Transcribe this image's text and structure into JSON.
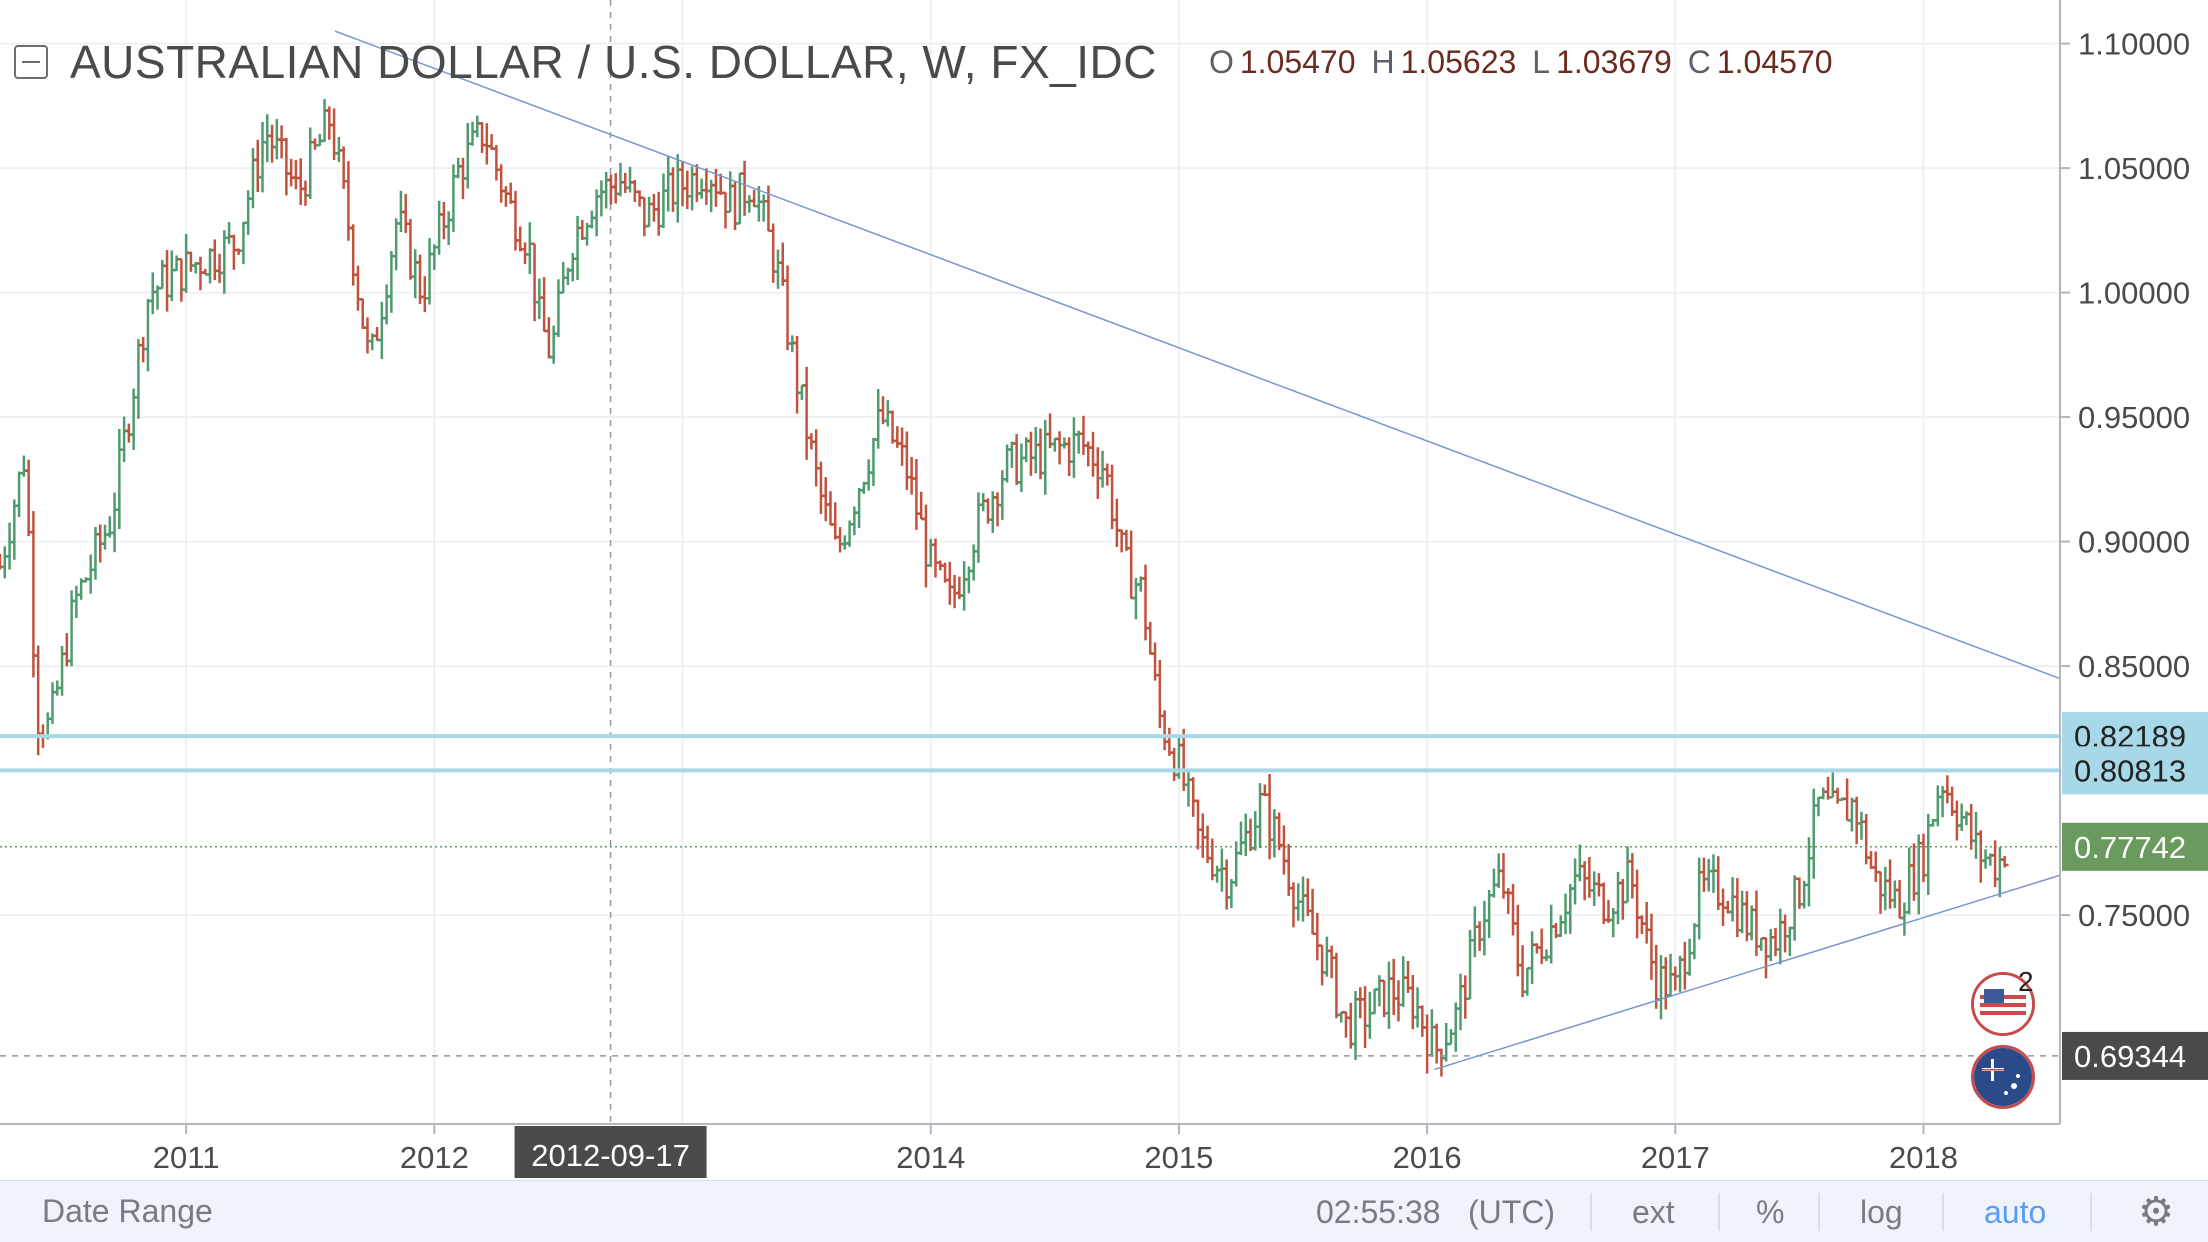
{
  "header": {
    "title": "AUSTRALIAN DOLLAR / U.S. DOLLAR, W, FX_IDC",
    "ohlc": [
      {
        "label": "O",
        "value": "1.05470"
      },
      {
        "label": "H",
        "value": "1.05623"
      },
      {
        "label": "L",
        "value": "1.03679"
      },
      {
        "label": "C",
        "value": "1.04570"
      }
    ]
  },
  "bottombar": {
    "date_range": "Date Range",
    "time": "02:55:38",
    "timezone": "(UTC)",
    "ext": "ext",
    "percent": "%",
    "log": "log",
    "auto": "auto"
  },
  "events": {
    "count": "2"
  },
  "chart_data": {
    "type": "ohlc-bar",
    "title": "AUSTRALIAN DOLLAR / U.S. DOLLAR, W, FX_IDC",
    "interval": "W",
    "ylim": [
      0.6661,
      1.1175
    ],
    "price_ticks": [
      1.1,
      1.05,
      1.0,
      0.95,
      0.9,
      0.85,
      0.75
    ],
    "price_tick_labels": [
      "1.10000",
      "1.05000",
      "1.00000",
      "0.95000",
      "0.90000",
      "0.85000",
      "0.75000"
    ],
    "xlim": [
      2010.25,
      2018.55
    ],
    "year_ticks": [
      2011,
      2012,
      2014,
      2015,
      2016,
      2017,
      2018
    ],
    "year_tick_labels": [
      "2011",
      "2012",
      "2014",
      "2015",
      "2016",
      "2017",
      "2018"
    ],
    "crosshair": {
      "x": 2012.71,
      "label": "2012-09-17"
    },
    "price_badges": [
      {
        "value": 0.82189,
        "label": "0.82189",
        "color": "#a7d8e8",
        "kind": "horizontal-line"
      },
      {
        "value": 0.80813,
        "label": "0.80813",
        "color": "#a7d8e8",
        "kind": "horizontal-line"
      },
      {
        "value": 0.77742,
        "label": "0.77742",
        "color": "#6a9a5e",
        "kind": "last-price"
      },
      {
        "value": 0.69344,
        "label": "0.69344",
        "color": "#4a4a4a",
        "kind": "dashed-line"
      }
    ],
    "trendlines": [
      {
        "x1": 2011.6,
        "y1": 1.105,
        "x2": 2018.55,
        "y2": 0.845
      },
      {
        "x1": 2016.03,
        "y1": 0.688,
        "x2": 2018.55,
        "y2": 0.766
      }
    ],
    "colors": {
      "up": "#4f9a6e",
      "down": "#c0523e"
    },
    "anchors": [
      [
        2010.25,
        0.89
      ],
      [
        2010.35,
        0.935
      ],
      [
        2010.4,
        0.83
      ],
      [
        2010.45,
        0.825
      ],
      [
        2010.55,
        0.875
      ],
      [
        2010.7,
        0.91
      ],
      [
        2010.85,
        1.0
      ],
      [
        2011.0,
        1.01
      ],
      [
        2011.2,
        1.02
      ],
      [
        2011.32,
        1.065
      ],
      [
        2011.45,
        1.04
      ],
      [
        2011.58,
        1.07
      ],
      [
        2011.65,
        1.03
      ],
      [
        2011.74,
        0.97
      ],
      [
        2011.85,
        1.03
      ],
      [
        2011.95,
        1.0
      ],
      [
        2012.1,
        1.05
      ],
      [
        2012.2,
        1.065
      ],
      [
        2012.3,
        1.035
      ],
      [
        2012.38,
        1.02
      ],
      [
        2012.42,
        0.99
      ],
      [
        2012.47,
        0.975
      ],
      [
        2012.55,
        1.02
      ],
      [
        2012.65,
        1.04
      ],
      [
        2012.75,
        1.045
      ],
      [
        2012.85,
        1.03
      ],
      [
        2012.95,
        1.04
      ],
      [
        2013.1,
        1.05
      ],
      [
        2013.2,
        1.035
      ],
      [
        2013.28,
        1.045
      ],
      [
        2013.38,
        1.01
      ],
      [
        2013.45,
        0.97
      ],
      [
        2013.55,
        0.92
      ],
      [
        2013.62,
        0.895
      ],
      [
        2013.7,
        0.92
      ],
      [
        2013.8,
        0.95
      ],
      [
        2013.9,
        0.93
      ],
      [
        2014.0,
        0.89
      ],
      [
        2014.08,
        0.875
      ],
      [
        2014.18,
        0.905
      ],
      [
        2014.3,
        0.93
      ],
      [
        2014.45,
        0.935
      ],
      [
        2014.6,
        0.94
      ],
      [
        2014.7,
        0.93
      ],
      [
        2014.78,
        0.89
      ],
      [
        2014.85,
        0.88
      ],
      [
        2014.92,
        0.83
      ],
      [
        2015.0,
        0.81
      ],
      [
        2015.08,
        0.78
      ],
      [
        2015.2,
        0.765
      ],
      [
        2015.33,
        0.795
      ],
      [
        2015.4,
        0.78
      ],
      [
        2015.5,
        0.75
      ],
      [
        2015.6,
        0.73
      ],
      [
        2015.67,
        0.705
      ],
      [
        2015.75,
        0.71
      ],
      [
        2015.85,
        0.72
      ],
      [
        2015.95,
        0.715
      ],
      [
        2016.03,
        0.695
      ],
      [
        2016.12,
        0.71
      ],
      [
        2016.22,
        0.75
      ],
      [
        2016.3,
        0.765
      ],
      [
        2016.38,
        0.725
      ],
      [
        2016.5,
        0.745
      ],
      [
        2016.6,
        0.765
      ],
      [
        2016.72,
        0.755
      ],
      [
        2016.82,
        0.765
      ],
      [
        2016.92,
        0.725
      ],
      [
        2017.0,
        0.72
      ],
      [
        2017.1,
        0.76
      ],
      [
        2017.2,
        0.76
      ],
      [
        2017.3,
        0.745
      ],
      [
        2017.4,
        0.74
      ],
      [
        2017.5,
        0.76
      ],
      [
        2017.58,
        0.795
      ],
      [
        2017.65,
        0.79
      ],
      [
        2017.72,
        0.795
      ],
      [
        2017.8,
        0.765
      ],
      [
        2017.9,
        0.755
      ],
      [
        2018.0,
        0.775
      ],
      [
        2018.07,
        0.805
      ],
      [
        2018.15,
        0.79
      ],
      [
        2018.22,
        0.775
      ],
      [
        2018.3,
        0.77
      ],
      [
        2018.33,
        0.7774
      ]
    ]
  }
}
